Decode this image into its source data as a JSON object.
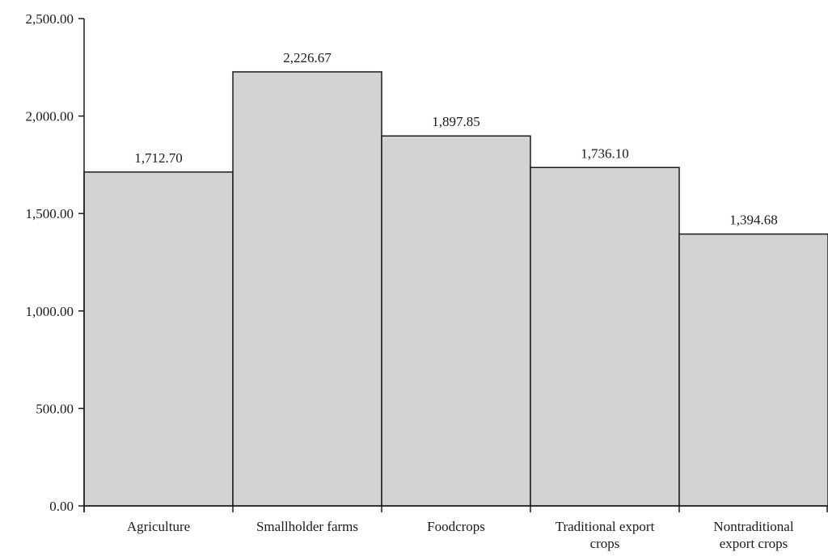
{
  "chart_data": {
    "type": "bar",
    "title": "",
    "xlabel": "",
    "ylabel": "",
    "categories": [
      [
        "Agriculture"
      ],
      [
        "Smallholder farms"
      ],
      [
        "Foodcrops"
      ],
      [
        "Traditional export",
        "crops"
      ],
      [
        "Nontraditional",
        "export crops"
      ]
    ],
    "values": [
      1712.7,
      2226.67,
      1897.85,
      1736.1,
      1394.68
    ],
    "value_labels": [
      "1,712.70",
      "2,226.67",
      "1,897.85",
      "1,736.10",
      "1,394.68"
    ],
    "ylim": [
      0,
      2500
    ],
    "yticks": [
      0,
      500,
      1000,
      1500,
      2000,
      2500
    ],
    "ytick_labels": [
      "0.00",
      "500.00",
      "1,000.00",
      "1,500.00",
      "2,000.00",
      "2,500.00"
    ],
    "grid": false,
    "bar_color": "#d4d2d4",
    "bar_edge_color": "#1a1a1a"
  }
}
